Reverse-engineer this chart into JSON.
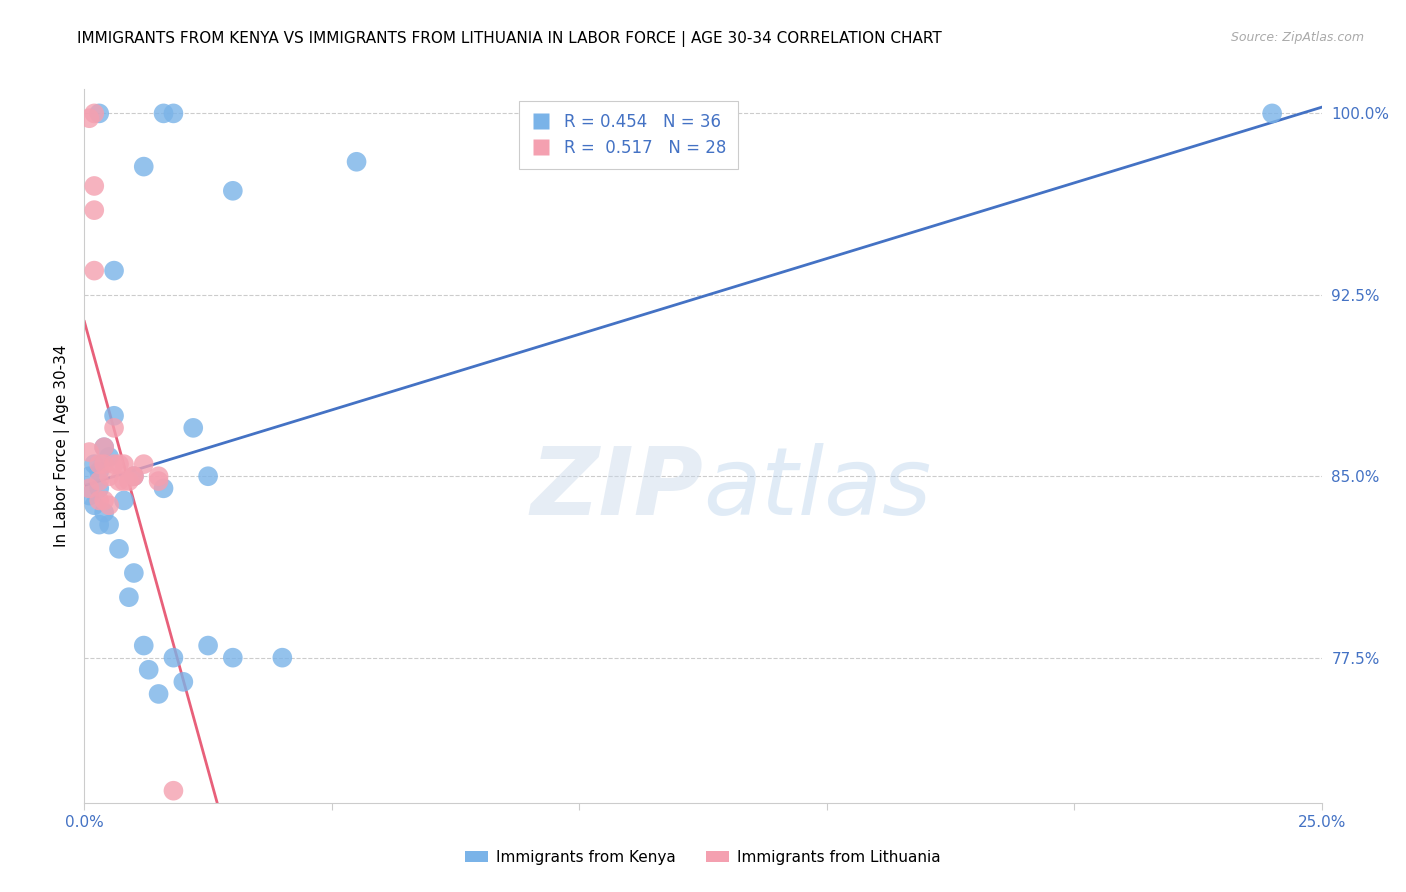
{
  "title": "IMMIGRANTS FROM KENYA VS IMMIGRANTS FROM LITHUANIA IN LABOR FORCE | AGE 30-34 CORRELATION CHART",
  "source": "Source: ZipAtlas.com",
  "ylabel": "In Labor Force | Age 30-34",
  "xlim": [
    0.0,
    0.25
  ],
  "ylim": [
    0.715,
    1.01
  ],
  "xtick_positions": [
    0.0,
    0.05,
    0.1,
    0.15,
    0.2,
    0.25
  ],
  "xticklabels": [
    "0.0%",
    "",
    "",
    "",
    "",
    "25.0%"
  ],
  "yticks_right": [
    0.775,
    0.85,
    0.925,
    1.0
  ],
  "ytick_labels_right": [
    "77.5%",
    "85.0%",
    "92.5%",
    "100.0%"
  ],
  "kenya_R": 0.454,
  "kenya_N": 36,
  "lithuania_R": 0.517,
  "lithuania_N": 28,
  "kenya_color": "#7ab3e8",
  "lithuania_color": "#f4a0b0",
  "kenya_line_color": "#4472c4",
  "lithuania_line_color": "#e8607a",
  "kenya_x": [
    0.001,
    0.001,
    0.002,
    0.002,
    0.003,
    0.003,
    0.003,
    0.004,
    0.004,
    0.005,
    0.005,
    0.006,
    0.007,
    0.008,
    0.009,
    0.01,
    0.012,
    0.013,
    0.015,
    0.016,
    0.018,
    0.02,
    0.022,
    0.025,
    0.03,
    0.055,
    0.24,
    0.003,
    0.012,
    0.016,
    0.018,
    0.03,
    0.006,
    0.01,
    0.025,
    0.04
  ],
  "kenya_y": [
    0.85,
    0.842,
    0.855,
    0.838,
    0.852,
    0.845,
    0.83,
    0.862,
    0.835,
    0.858,
    0.83,
    0.875,
    0.82,
    0.84,
    0.8,
    0.85,
    0.78,
    0.77,
    0.76,
    0.845,
    0.775,
    0.765,
    0.87,
    0.85,
    0.775,
    0.98,
    1.0,
    1.0,
    0.978,
    1.0,
    1.0,
    0.968,
    0.935,
    0.81,
    0.78,
    0.775
  ],
  "lithuania_x": [
    0.001,
    0.001,
    0.002,
    0.002,
    0.002,
    0.003,
    0.003,
    0.003,
    0.004,
    0.004,
    0.004,
    0.005,
    0.005,
    0.006,
    0.006,
    0.007,
    0.008,
    0.008,
    0.009,
    0.01,
    0.012,
    0.015,
    0.015,
    0.018,
    0.002,
    0.001,
    0.007,
    0.01
  ],
  "lithuania_y": [
    0.86,
    0.845,
    0.97,
    0.96,
    0.935,
    0.855,
    0.848,
    0.84,
    0.862,
    0.855,
    0.84,
    0.85,
    0.838,
    0.87,
    0.855,
    0.848,
    0.855,
    0.848,
    0.848,
    0.85,
    0.855,
    0.848,
    0.85,
    0.72,
    1.0,
    0.998,
    0.855,
    0.85
  ],
  "legend_labels": [
    "Immigrants from Kenya",
    "Immigrants from Lithuania"
  ],
  "background_color": "#ffffff",
  "grid_color": "#cccccc",
  "title_fontsize": 11,
  "axis_label_fontsize": 11,
  "tick_fontsize": 11,
  "legend_fontsize": 12
}
